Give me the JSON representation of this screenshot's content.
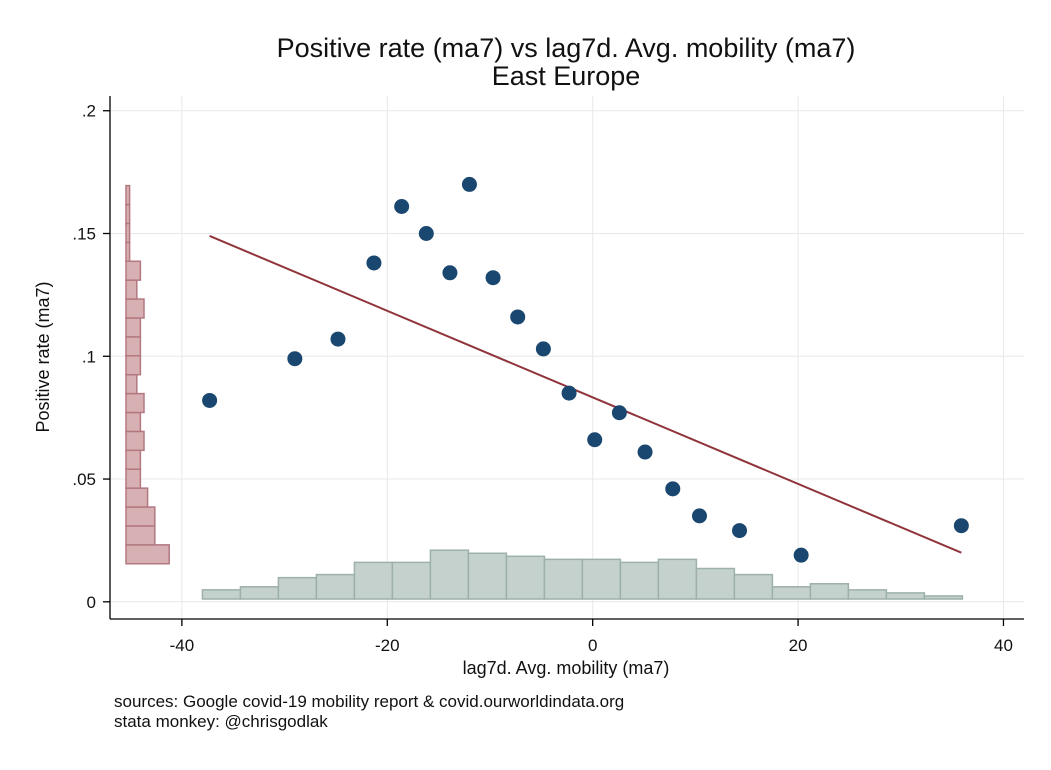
{
  "chart_data": {
    "type": "scatter",
    "title": "Positive rate (ma7) vs lag7d. Avg. mobility (ma7)",
    "subtitle": "East Europe",
    "xlabel": "lag7d. Avg. mobility (ma7)",
    "ylabel": "Positive rate (ma7)",
    "xlim": [
      -47,
      42
    ],
    "ylim": [
      -0.007,
      0.206
    ],
    "x_ticks": [
      {
        "value": -40,
        "label": "-40"
      },
      {
        "value": -20,
        "label": "-20"
      },
      {
        "value": 0,
        "label": "0"
      },
      {
        "value": 20,
        "label": "20"
      },
      {
        "value": 40,
        "label": "40"
      }
    ],
    "y_ticks": [
      {
        "value": 0,
        "label": "0"
      },
      {
        "value": 0.05,
        "label": ".05"
      },
      {
        "value": 0.1,
        "label": ".1"
      },
      {
        "value": 0.15,
        "label": ".15"
      },
      {
        "value": 0.2,
        "label": ".2"
      }
    ],
    "grid": true,
    "points": [
      {
        "x": -37.3,
        "y": 0.082
      },
      {
        "x": -29.0,
        "y": 0.099
      },
      {
        "x": -24.8,
        "y": 0.107
      },
      {
        "x": -21.3,
        "y": 0.138
      },
      {
        "x": -18.6,
        "y": 0.161
      },
      {
        "x": -16.2,
        "y": 0.15
      },
      {
        "x": -13.9,
        "y": 0.134
      },
      {
        "x": -12.0,
        "y": 0.17
      },
      {
        "x": -9.7,
        "y": 0.132
      },
      {
        "x": -7.3,
        "y": 0.116
      },
      {
        "x": -4.8,
        "y": 0.103
      },
      {
        "x": -2.3,
        "y": 0.085
      },
      {
        "x": 0.2,
        "y": 0.066
      },
      {
        "x": 2.6,
        "y": 0.077
      },
      {
        "x": 5.1,
        "y": 0.061
      },
      {
        "x": 7.8,
        "y": 0.046
      },
      {
        "x": 10.4,
        "y": 0.035
      },
      {
        "x": 14.3,
        "y": 0.029
      },
      {
        "x": 20.3,
        "y": 0.019
      },
      {
        "x": 35.9,
        "y": 0.031
      }
    ],
    "fit_line": {
      "x1": -37.3,
      "y1": 0.149,
      "x2": 35.9,
      "y2": 0.02
    },
    "x_histogram": {
      "bin_edges": [
        -38,
        -34.3,
        -30.6,
        -26.9,
        -23.2,
        -19.5,
        -15.8,
        -12.1,
        -8.4,
        -4.7,
        -1.0,
        2.7,
        6.4,
        10.1,
        13.8,
        17.5,
        21.2,
        24.9,
        28.6,
        32.3,
        36
      ],
      "frequencies": [
        3,
        4,
        7,
        8,
        12,
        12,
        16,
        15,
        14,
        13,
        13,
        12,
        13,
        10,
        8,
        4,
        5,
        3,
        2,
        1
      ]
    },
    "y_histogram": {
      "bin_edges": [
        0.0155,
        0.0232,
        0.0309,
        0.0386,
        0.0463,
        0.054,
        0.0617,
        0.0694,
        0.0771,
        0.0848,
        0.0925,
        0.1002,
        0.1079,
        0.1156,
        0.1233,
        0.131,
        0.1387,
        0.1464,
        0.1541,
        0.1618,
        0.1695
      ],
      "frequencies": [
        12,
        8,
        8,
        6,
        4,
        4,
        5,
        4,
        5,
        3,
        4,
        4,
        4,
        5,
        3,
        4,
        1,
        1,
        1,
        1
      ]
    },
    "colors": {
      "points": "#1a476f",
      "fit_line": "#90353b",
      "x_hist_fill": "#c5d1cd",
      "x_hist_stroke": "#9db1a9",
      "y_hist_fill": "#d7b0b4",
      "y_hist_stroke": "#b37880",
      "grid": "#e8e8e8"
    }
  },
  "notes": {
    "line1": "sources: Google covid-19 mobility report & covid.ourworldindata.org",
    "line2": "stata monkey: @chrisgodlak"
  }
}
